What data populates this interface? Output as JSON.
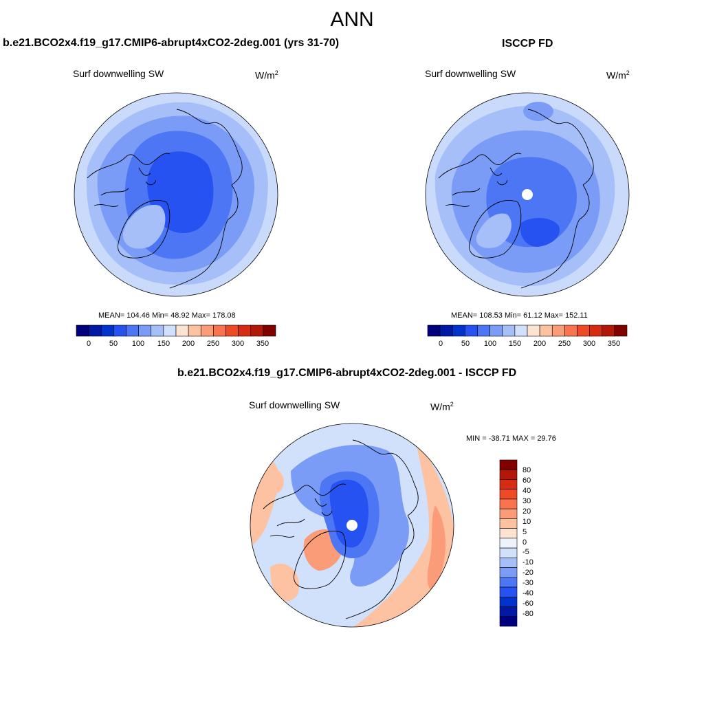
{
  "main_title": "ANN",
  "panels": [
    {
      "title": "b.e21.BCO2x4.f19_g17.CMIP6-abrupt4xCO2-2deg.001 (yrs 31-70)",
      "variable": "Surf downwelling SW",
      "units_base": "W/m",
      "units_exp": "2",
      "stats": "MEAN= 104.46  Min=  48.92  Max= 178.08"
    },
    {
      "title": "ISCCP FD",
      "variable": "Surf downwelling SW",
      "units_base": "W/m",
      "units_exp": "2",
      "stats": "MEAN= 108.53  Min=  61.12  Max= 152.11"
    },
    {
      "title": "b.e21.BCO2x4.f19_g17.CMIP6-abrupt4xCO2-2deg.001 - ISCCP FD",
      "variable": "Surf downwelling SW",
      "units_base": "W/m",
      "units_exp": "2",
      "stats": "MIN = -38.71 MAX =  29.76"
    }
  ],
  "colorbar_abs": {
    "colors": [
      "#00007f",
      "#0018a3",
      "#0033cc",
      "#2652f2",
      "#4d76f5",
      "#7a9cf7",
      "#a6bff9",
      "#d1e0fb",
      "#fde3d2",
      "#fcc2a2",
      "#fb9c78",
      "#f8734e",
      "#ee4a26",
      "#d62d12",
      "#b21708",
      "#800000"
    ],
    "labels": [
      "0",
      "50",
      "100",
      "150",
      "200",
      "250",
      "300",
      "350"
    ]
  },
  "colorbar_diff": {
    "colors": [
      "#800000",
      "#b21708",
      "#d62d12",
      "#ee4a26",
      "#f8734e",
      "#fb9c78",
      "#fcc2a2",
      "#fde3d2",
      "#eef2fc",
      "#d1e0fb",
      "#a6bff9",
      "#7a9cf7",
      "#4d76f5",
      "#2652f2",
      "#0033cc",
      "#0018a3",
      "#00007f"
    ],
    "labels": [
      "80",
      "60",
      "40",
      "30",
      "20",
      "10",
      "5",
      "0",
      "-5",
      "-10",
      "-20",
      "-30",
      "-40",
      "-60",
      "-80"
    ]
  },
  "map_colors": {
    "abs_ring_outer": "#c9dafa",
    "abs_ring_mid": "#a6bff9",
    "abs_ring_inner": "#7a9cf7",
    "abs_core": "#4d76f5",
    "abs_center": "#2652f2",
    "greenland": "#a6bff9",
    "diff_base": "#d1e0fb",
    "diff_warm": "#fcc2a2",
    "diff_warm2": "#fb9c78",
    "diff_cool": "#7a9cf7",
    "diff_core": "#2652f2",
    "diff_core2": "#4d76f5"
  }
}
